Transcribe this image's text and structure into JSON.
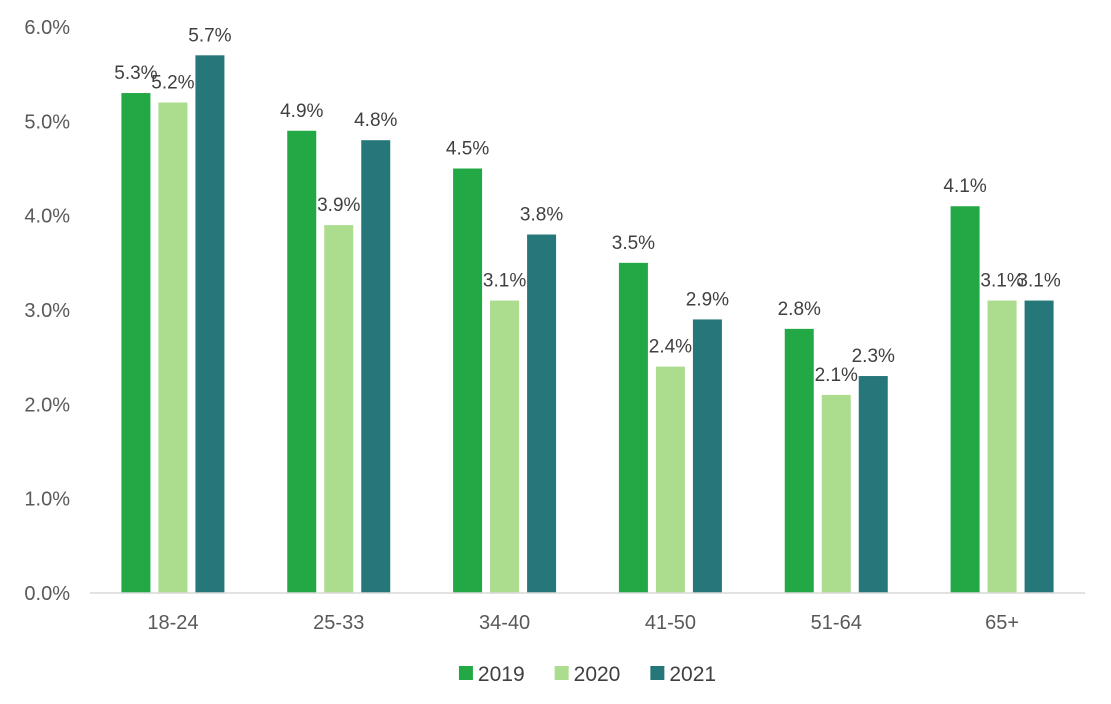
{
  "chart_data": {
    "type": "bar",
    "title": "",
    "xlabel": "",
    "ylabel": "",
    "categories": [
      "18-24",
      "25-33",
      "34-40",
      "41-50",
      "51-64",
      "65+"
    ],
    "series": [
      {
        "name": "2019",
        "color": "#22a845",
        "values": [
          5.3,
          4.9,
          4.5,
          3.5,
          2.8,
          4.1
        ],
        "labels": [
          "5.3%",
          "4.9%",
          "4.5%",
          "3.5%",
          "2.8%",
          "4.1%"
        ]
      },
      {
        "name": "2020",
        "color": "#acdc8e",
        "values": [
          5.2,
          3.9,
          3.1,
          2.4,
          2.1,
          3.1
        ],
        "labels": [
          "5.2%",
          "3.9%",
          "3.1%",
          "2.4%",
          "2.1%",
          "3.1%"
        ]
      },
      {
        "name": "2021",
        "color": "#25777a",
        "values": [
          5.7,
          4.8,
          3.8,
          2.9,
          2.3,
          3.1
        ],
        "labels": [
          "5.7%",
          "4.8%",
          "3.8%",
          "2.9%",
          "2.3%",
          "3.1%"
        ]
      }
    ],
    "ylim": [
      0,
      6
    ],
    "yticks": [
      "0.0%",
      "1.0%",
      "2.0%",
      "3.0%",
      "4.0%",
      "5.0%",
      "6.0%"
    ],
    "grid": false,
    "legend": "bottom-center"
  }
}
